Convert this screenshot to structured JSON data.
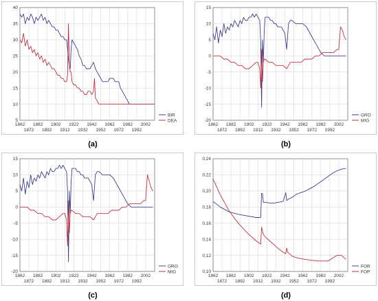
{
  "colors": {
    "blue": "#3b3f8f",
    "red": "#c2303e",
    "grid": "#d9d9d9",
    "axis": "#777777"
  },
  "chart_data": [
    {
      "id": "a",
      "type": "line",
      "caption": "(a)",
      "xlim": [
        1862,
        2012
      ],
      "ylim": [
        5,
        40
      ],
      "x_top_ticks": [
        "1862",
        "1882",
        "1902",
        "1922",
        "1942",
        "1962",
        "1982",
        "2002"
      ],
      "x_bottom_ticks": [
        "1872",
        "1892",
        "1912",
        "1932",
        "1952",
        "1972",
        "1992"
      ],
      "x_tick_positions_top": [
        1862,
        1882,
        1902,
        1922,
        1942,
        1962,
        1982,
        2002
      ],
      "x_tick_positions_bottom": [
        1872,
        1892,
        1912,
        1932,
        1952,
        1972,
        1992
      ],
      "y_ticks": [
        5,
        10,
        15,
        20,
        25,
        30,
        35,
        40
      ],
      "single_row_x": true,
      "legend": [
        "BIR",
        "DEA"
      ],
      "series": [
        {
          "name": "BIR",
          "color": "blue",
          "x": [
            1862,
            1864,
            1866,
            1868,
            1870,
            1872,
            1874,
            1876,
            1878,
            1880,
            1882,
            1884,
            1886,
            1888,
            1890,
            1892,
            1894,
            1896,
            1898,
            1900,
            1902,
            1904,
            1906,
            1908,
            1910,
            1912,
            1914,
            1915,
            1916,
            1917,
            1918,
            1919,
            1920,
            1922,
            1924,
            1926,
            1928,
            1930,
            1932,
            1934,
            1936,
            1938,
            1940,
            1942,
            1944,
            1946,
            1948,
            1950,
            1952,
            1954,
            1956,
            1958,
            1960,
            1962,
            1964,
            1966,
            1968,
            1970,
            1972,
            1974,
            1976,
            1978,
            1980,
            1982,
            1984,
            1986,
            1990,
            1994,
            1998,
            2002,
            2006,
            2010,
            2012
          ],
          "y": [
            38,
            37,
            38,
            35,
            37,
            36,
            38,
            37,
            35,
            37,
            36,
            37,
            38,
            36,
            37,
            35,
            36,
            35,
            34,
            34,
            33,
            33,
            32,
            31,
            31,
            30,
            30,
            27,
            24,
            22,
            21,
            27,
            30,
            29,
            28,
            27,
            25,
            24,
            22,
            22,
            21,
            21,
            21,
            22,
            23,
            21,
            20,
            19,
            18,
            17,
            17,
            17,
            17,
            18,
            18,
            18,
            17,
            17,
            17,
            15,
            14,
            13,
            12,
            11,
            10,
            10,
            10,
            10,
            10,
            10,
            10,
            10,
            10
          ]
        },
        {
          "name": "DEA",
          "color": "red",
          "x": [
            1862,
            1864,
            1866,
            1868,
            1870,
            1872,
            1874,
            1876,
            1878,
            1880,
            1882,
            1884,
            1886,
            1888,
            1890,
            1892,
            1894,
            1896,
            1898,
            1900,
            1902,
            1904,
            1906,
            1908,
            1910,
            1912,
            1914,
            1915,
            1916,
            1917,
            1918,
            1919,
            1920,
            1922,
            1924,
            1926,
            1928,
            1930,
            1932,
            1934,
            1936,
            1938,
            1940,
            1942,
            1944,
            1945,
            1946,
            1948,
            1950,
            1952,
            1956,
            1960,
            1964,
            1968,
            1972,
            1976,
            1980,
            1984,
            1990,
            1996,
            2002,
            2006,
            2010,
            2012
          ],
          "y": [
            30,
            29,
            32,
            28,
            30,
            27,
            28,
            26,
            27,
            25,
            26,
            24,
            25,
            23,
            24,
            22,
            23,
            22,
            21,
            21,
            20,
            19,
            19,
            18,
            18,
            17,
            17,
            19,
            35,
            22,
            20,
            20,
            17,
            16,
            16,
            15,
            15,
            14,
            14,
            13,
            13,
            14,
            14,
            13,
            14,
            18,
            12,
            11,
            10,
            10,
            10,
            10,
            10,
            10,
            10,
            10,
            10,
            10,
            10,
            10,
            10,
            10,
            10,
            10
          ]
        }
      ]
    },
    {
      "id": "b",
      "type": "line",
      "caption": "(b)",
      "xlim": [
        1862,
        2012
      ],
      "ylim": [
        -20,
        15
      ],
      "x_top_ticks": [
        "1862",
        "1882",
        "1902",
        "1922",
        "1942",
        "1962",
        "1982",
        "2002"
      ],
      "x_bottom_ticks": [
        "1872",
        "1892",
        "1912",
        "1932",
        "1952",
        "1972",
        "1992"
      ],
      "x_tick_positions_top": [
        1862,
        1882,
        1902,
        1922,
        1942,
        1962,
        1982,
        2002
      ],
      "x_tick_positions_bottom": [
        1872,
        1892,
        1912,
        1932,
        1952,
        1972,
        1992
      ],
      "y_ticks": [
        -20,
        -15,
        -10,
        -5,
        0,
        5,
        10,
        15
      ],
      "legend": [
        "GRO",
        "MIG"
      ],
      "series": [
        {
          "name": "GRO",
          "color": "blue",
          "x": [
            1862,
            1864,
            1866,
            1868,
            1870,
            1872,
            1874,
            1876,
            1878,
            1880,
            1882,
            1884,
            1886,
            1888,
            1890,
            1892,
            1894,
            1896,
            1898,
            1900,
            1902,
            1904,
            1906,
            1908,
            1910,
            1912,
            1914,
            1915,
            1916,
            1917,
            1918,
            1919,
            1920,
            1922,
            1924,
            1926,
            1928,
            1930,
            1932,
            1934,
            1936,
            1938,
            1940,
            1942,
            1944,
            1946,
            1948,
            1950,
            1954,
            1958,
            1962,
            1966,
            1970,
            1974,
            1978,
            1982,
            1986,
            1990,
            1994,
            1998,
            2002,
            2006,
            2010
          ],
          "y": [
            7,
            5,
            9,
            4,
            8,
            6,
            10,
            7,
            9,
            8,
            10,
            9,
            11,
            10,
            9,
            11,
            10,
            12,
            11,
            11,
            12,
            12,
            13,
            12,
            13,
            12,
            11,
            5,
            -16,
            5,
            -2,
            8,
            12,
            12,
            12,
            11,
            11,
            10,
            10,
            9,
            9,
            9,
            8,
            7,
            2,
            10,
            11,
            11,
            10,
            10,
            10,
            9,
            7,
            5,
            3,
            1,
            0,
            0,
            0,
            0,
            0,
            0,
            0
          ]
        },
        {
          "name": "MIG",
          "color": "red",
          "x": [
            1862,
            1866,
            1870,
            1874,
            1878,
            1882,
            1886,
            1890,
            1894,
            1898,
            1902,
            1906,
            1910,
            1912,
            1914,
            1915,
            1916,
            1917,
            1918,
            1919,
            1920,
            1924,
            1928,
            1932,
            1936,
            1940,
            1944,
            1948,
            1952,
            1956,
            1960,
            1964,
            1968,
            1972,
            1976,
            1980,
            1984,
            1988,
            1992,
            1996,
            2000,
            2002,
            2004,
            2006,
            2008,
            2010
          ],
          "y": [
            0,
            0,
            0,
            -1,
            -1,
            -2,
            -2,
            -3,
            -3,
            -4,
            -4,
            -3,
            -2,
            -2,
            -4,
            -10,
            2,
            -8,
            -2,
            -1,
            -1,
            -2,
            -2,
            -3,
            -3,
            -3,
            -4,
            -2,
            -2,
            -2,
            -2,
            -1,
            -1,
            -1,
            0,
            0,
            1,
            1,
            1,
            1,
            2,
            2,
            9,
            8,
            6,
            5
          ]
        }
      ]
    },
    {
      "id": "c",
      "type": "line",
      "caption": "(c)",
      "xlim": [
        1862,
        2012
      ],
      "ylim": [
        -20,
        15
      ],
      "x_top_ticks": [
        "1862",
        "1882",
        "1902",
        "1922",
        "1942",
        "1962",
        "1982",
        "2002"
      ],
      "x_bottom_ticks": [
        "1872",
        "1892",
        "1912",
        "1932",
        "1952",
        "1972",
        "1992"
      ],
      "x_tick_positions_top": [
        1862,
        1882,
        1902,
        1922,
        1942,
        1962,
        1982,
        2002
      ],
      "x_tick_positions_bottom": [
        1872,
        1892,
        1912,
        1932,
        1952,
        1972,
        1992
      ],
      "y_ticks": [
        -20,
        -15,
        -10,
        -5,
        0,
        5,
        10,
        15
      ],
      "legend": [
        "GRO",
        "MIG"
      ],
      "series": [
        {
          "name": "GRO",
          "color": "blue",
          "x": [
            1862,
            1864,
            1866,
            1868,
            1870,
            1872,
            1874,
            1876,
            1878,
            1880,
            1882,
            1884,
            1886,
            1888,
            1890,
            1892,
            1894,
            1896,
            1898,
            1900,
            1902,
            1904,
            1906,
            1908,
            1910,
            1912,
            1914,
            1915,
            1916,
            1917,
            1918,
            1919,
            1920,
            1922,
            1924,
            1926,
            1928,
            1930,
            1932,
            1934,
            1936,
            1938,
            1940,
            1942,
            1944,
            1946,
            1948,
            1950,
            1954,
            1958,
            1962,
            1966,
            1970,
            1974,
            1978,
            1982,
            1986,
            1990,
            1994,
            1998,
            2002,
            2006,
            2010
          ],
          "y": [
            7,
            5,
            9,
            4,
            8,
            6,
            10,
            7,
            9,
            8,
            10,
            9,
            11,
            10,
            9,
            11,
            10,
            12,
            11,
            11,
            12,
            12,
            13,
            12,
            13,
            12,
            11,
            5,
            -17,
            5,
            -2,
            8,
            12,
            12,
            12,
            11,
            11,
            10,
            10,
            9,
            9,
            9,
            8,
            7,
            2,
            10,
            11,
            11,
            10,
            10,
            10,
            9,
            7,
            5,
            3,
            1,
            0,
            0,
            0,
            0,
            0,
            0,
            0
          ]
        },
        {
          "name": "MIG",
          "color": "red",
          "x": [
            1862,
            1866,
            1870,
            1874,
            1878,
            1882,
            1886,
            1890,
            1894,
            1898,
            1902,
            1906,
            1910,
            1912,
            1914,
            1915,
            1916,
            1917,
            1918,
            1919,
            1920,
            1924,
            1928,
            1932,
            1936,
            1940,
            1944,
            1948,
            1952,
            1956,
            1960,
            1964,
            1968,
            1972,
            1976,
            1980,
            1984,
            1988,
            1992,
            1996,
            2000,
            2002,
            2004,
            2006,
            2008,
            2010
          ],
          "y": [
            0,
            0,
            0,
            -1,
            -1,
            -2,
            -2,
            -3,
            -3,
            -4,
            -4,
            -3,
            -2,
            -2,
            -4,
            -12,
            2,
            -8,
            -2,
            -1,
            -1,
            -2,
            -2,
            -3,
            -3,
            -3,
            -4,
            -2,
            -2,
            -2,
            -2,
            -1,
            -1,
            -1,
            0,
            0,
            1,
            1,
            1,
            1,
            2,
            2,
            10,
            8,
            6,
            5
          ]
        }
      ]
    },
    {
      "id": "d",
      "type": "line",
      "caption": "(d)",
      "xlim": [
        1862,
        2012
      ],
      "ylim": [
        0.1,
        0.24
      ],
      "x_top_ticks": [
        "1862",
        "1882",
        "1902",
        "1922",
        "1942",
        "1962",
        "1982",
        "2002"
      ],
      "x_bottom_ticks": [
        "1872",
        "1892",
        "1912",
        "1932",
        "1952",
        "1972",
        "1992"
      ],
      "x_tick_positions_top": [
        1862,
        1882,
        1902,
        1922,
        1942,
        1962,
        1982,
        2002
      ],
      "x_tick_positions_bottom": [
        1872,
        1892,
        1912,
        1932,
        1952,
        1972,
        1992
      ],
      "y_ticks": [
        0.1,
        0.12,
        0.14,
        0.16,
        0.18,
        0.2,
        0.22,
        0.24
      ],
      "y_tick_labels": [
        "0,10",
        "0,12",
        "0,14",
        "0,16",
        "0,18",
        "0,20",
        "0,22",
        "0,24"
      ],
      "legend": [
        "FOR",
        "FOP"
      ],
      "series": [
        {
          "name": "FOR",
          "color": "blue",
          "x": [
            1862,
            1870,
            1880,
            1890,
            1900,
            1910,
            1915,
            1916,
            1917,
            1918,
            1920,
            1925,
            1930,
            1935,
            1940,
            1943,
            1944,
            1945,
            1946,
            1950,
            1955,
            1960,
            1965,
            1970,
            1975,
            1980,
            1985,
            1990,
            1995,
            2000,
            2005,
            2010
          ],
          "y": [
            0.187,
            0.18,
            0.174,
            0.171,
            0.169,
            0.167,
            0.167,
            0.197,
            0.197,
            0.186,
            0.186,
            0.185,
            0.185,
            0.186,
            0.187,
            0.198,
            0.188,
            0.189,
            0.19,
            0.192,
            0.196,
            0.198,
            0.2,
            0.203,
            0.206,
            0.21,
            0.214,
            0.218,
            0.222,
            0.225,
            0.227,
            0.228
          ]
        },
        {
          "name": "FOP",
          "color": "red",
          "x": [
            1862,
            1870,
            1880,
            1890,
            1900,
            1910,
            1915,
            1916,
            1917,
            1918,
            1920,
            1925,
            1930,
            1935,
            1940,
            1943,
            1944,
            1945,
            1950,
            1955,
            1960,
            1970,
            1980,
            1990,
            2000,
            2005,
            2010
          ],
          "y": [
            0.215,
            0.195,
            0.175,
            0.16,
            0.148,
            0.138,
            0.134,
            0.155,
            0.15,
            0.146,
            0.143,
            0.138,
            0.133,
            0.128,
            0.124,
            0.122,
            0.129,
            0.124,
            0.119,
            0.117,
            0.116,
            0.114,
            0.113,
            0.113,
            0.12,
            0.12,
            0.115
          ]
        }
      ]
    }
  ]
}
